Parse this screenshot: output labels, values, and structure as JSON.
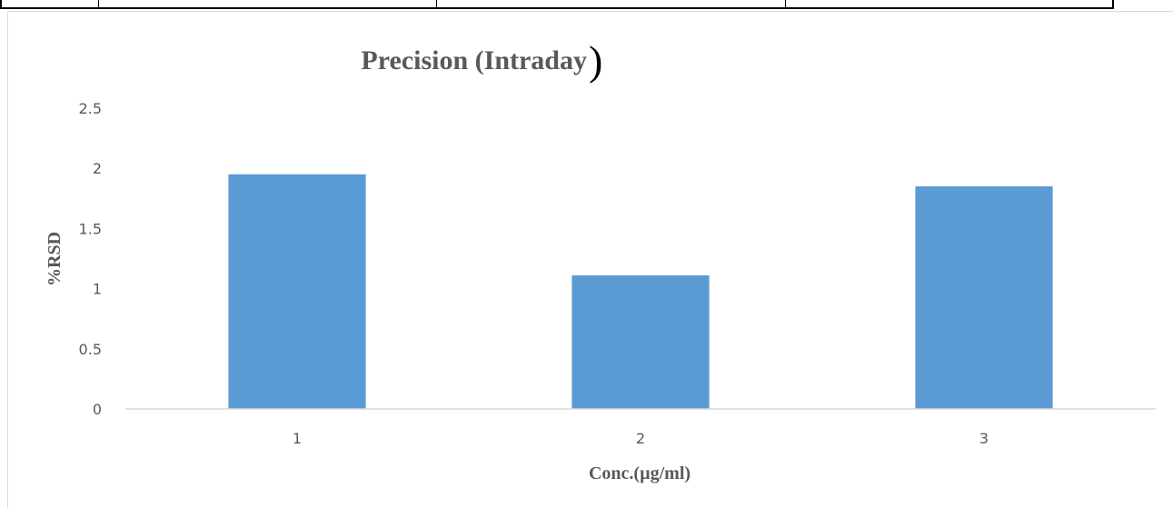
{
  "chart_data": {
    "type": "bar",
    "title_main": "Precision (Intraday",
    "title_paren": ")",
    "categories": [
      "1",
      "2",
      "3"
    ],
    "values": [
      1.95,
      1.11,
      1.85
    ],
    "xlabel": "Conc.(µg/ml)",
    "ylabel": "%RSD",
    "ylim": [
      0,
      2.5
    ],
    "yticks": [
      "0",
      "0.5",
      "1",
      "1.5",
      "2",
      "2.5"
    ],
    "grid": false,
    "bar_color": "#5b9bd5"
  }
}
